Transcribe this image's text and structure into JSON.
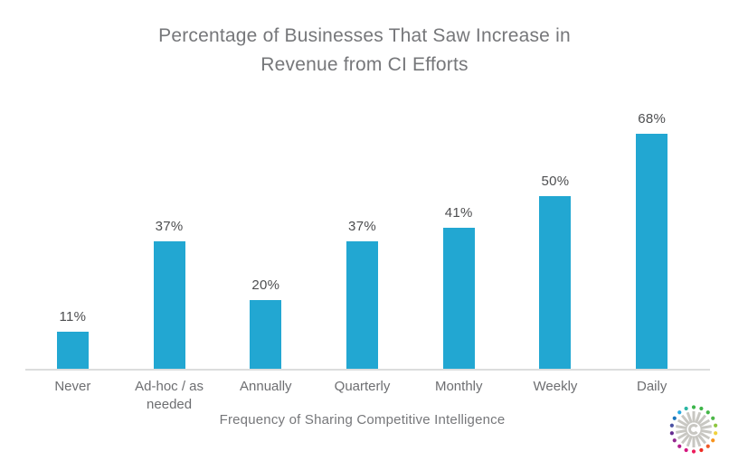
{
  "chart_data": {
    "type": "bar",
    "title": "Percentage of Businesses That Saw Increase in Revenue from CI Efforts",
    "title_lines": [
      "Percentage of Businesses That Saw Increase in",
      "Revenue from CI Efforts"
    ],
    "categories": [
      "Never",
      "Ad-hoc / as needed",
      "Annually",
      "Quarterly",
      "Monthly",
      "Weekly",
      "Daily"
    ],
    "values": [
      11,
      37,
      20,
      37,
      41,
      50,
      68
    ],
    "value_labels": [
      "11%",
      "37%",
      "20%",
      "37%",
      "41%",
      "50%",
      "68%"
    ],
    "xlabel": "Frequency of Sharing Competitive Intelligence",
    "ylabel": "",
    "ylim": [
      0,
      75
    ],
    "grid": false,
    "legend": "none",
    "bar_color": "#22a7d2"
  },
  "colors": {
    "bar": "#22a7d2",
    "title_text": "#76777a",
    "value_text": "#4d4e50",
    "category_text": "#6d6e71",
    "axis_line": "#dcdddd",
    "logo_ray": "#c8c7c2"
  },
  "logo": {
    "name": "crayon-starburst-logo",
    "dot_colors": [
      "#3bb54a",
      "#3eb549",
      "#45b649",
      "#4db748",
      "#8dc63f",
      "#f0d23d",
      "#f7941e",
      "#f05a28",
      "#ee2d24",
      "#ec1c5b",
      "#d4167f",
      "#b21d8e",
      "#92278f",
      "#662d91",
      "#4b52a3",
      "#1b75bc",
      "#27aae1",
      "#2bb6a3"
    ]
  }
}
